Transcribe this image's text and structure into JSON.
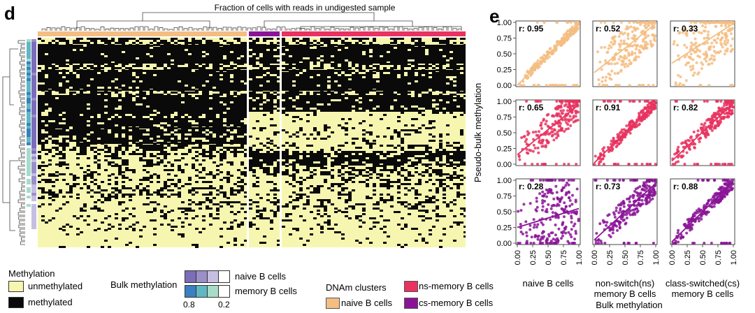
{
  "panel_d": {
    "letter": "d",
    "subtitle": "Fraction of cells with reads in undigested sample",
    "colors": {
      "unmethylated": "#f6f6b0",
      "methylated": "#0a0a0a",
      "naive": "#f4bd82",
      "ns": "#e8325f",
      "cs": "#8a1496"
    }
  },
  "legend": {
    "methylation": {
      "title": "Methylation",
      "items": [
        {
          "label": "unmethylated",
          "color": "#f6f6b0"
        },
        {
          "label": "methylated",
          "color": "#0a0a0a"
        }
      ]
    },
    "bulk": {
      "title": "Bulk methylation",
      "rows": [
        {
          "label": "naive B cells",
          "colors": [
            "#7b6db8",
            "#9a8fc8",
            "#c6bfe2",
            "#ffffff"
          ]
        },
        {
          "label": "memory B cells",
          "colors": [
            "#3a7fc0",
            "#5fb8c2",
            "#a6dcc8",
            "#ffffff"
          ]
        }
      ],
      "tick_low": "0.8",
      "tick_high": "0.2"
    },
    "clusters": {
      "title": "DNAm clusters",
      "items": [
        {
          "label": "naive B cells",
          "color": "#f4bd82"
        },
        {
          "label": "ns-memory B cells",
          "color": "#e8325f"
        },
        {
          "label": "cs-memory B cells",
          "color": "#8a1496"
        }
      ]
    }
  },
  "panel_e": {
    "letter": "e",
    "ylabel": "Pseudo-bulk methylation",
    "xlabel": "Bulk methylation",
    "col_labels": [
      [
        "naive B cells"
      ],
      [
        "non-switch(ns)",
        "memory B cells"
      ],
      [
        "class-switched(cs)",
        "memory B cells"
      ]
    ]
  },
  "chart_data": {
    "type": "scatter",
    "xlim": [
      0,
      1
    ],
    "ylim": [
      0,
      1
    ],
    "ticks": [
      "0.00",
      "0.25",
      "0.50",
      "0.75",
      "1.00"
    ],
    "rows": [
      "naive B cells",
      "ns-memory B cells",
      "cs-memory B cells"
    ],
    "cols": [
      "naive B cells",
      "non-switch(ns) memory B cells",
      "class-switched(cs) memory B cells"
    ],
    "row_colors": [
      "#f4bd82",
      "#e8325f",
      "#8a1496"
    ],
    "panels": [
      {
        "row": 0,
        "col": 0,
        "r": "r: 0.95",
        "fit": [
          0.0,
          0.0,
          1.0,
          0.97
        ]
      },
      {
        "row": 0,
        "col": 1,
        "r": "r: 0.52",
        "fit": [
          0.0,
          0.2,
          1.0,
          0.98
        ]
      },
      {
        "row": 0,
        "col": 2,
        "r": "r: 0.33",
        "fit": [
          0.0,
          0.35,
          1.0,
          0.98
        ]
      },
      {
        "row": 1,
        "col": 0,
        "r": "r: 0.65",
        "fit": [
          0.0,
          0.15,
          1.0,
          0.95
        ]
      },
      {
        "row": 1,
        "col": 1,
        "r": "r: 0.91",
        "fit": [
          0.0,
          0.02,
          1.0,
          0.98
        ]
      },
      {
        "row": 1,
        "col": 2,
        "r": "r: 0.82",
        "fit": [
          0.0,
          0.05,
          1.0,
          0.97
        ]
      },
      {
        "row": 2,
        "col": 0,
        "r": "r: 0.28",
        "fit": [
          0.0,
          0.25,
          1.0,
          0.55
        ]
      },
      {
        "row": 2,
        "col": 1,
        "r": "r: 0.73",
        "fit": [
          0.0,
          0.05,
          1.0,
          0.95
        ]
      },
      {
        "row": 2,
        "col": 2,
        "r": "r: 0.88",
        "fit": [
          0.0,
          0.02,
          1.0,
          0.98
        ]
      }
    ]
  }
}
